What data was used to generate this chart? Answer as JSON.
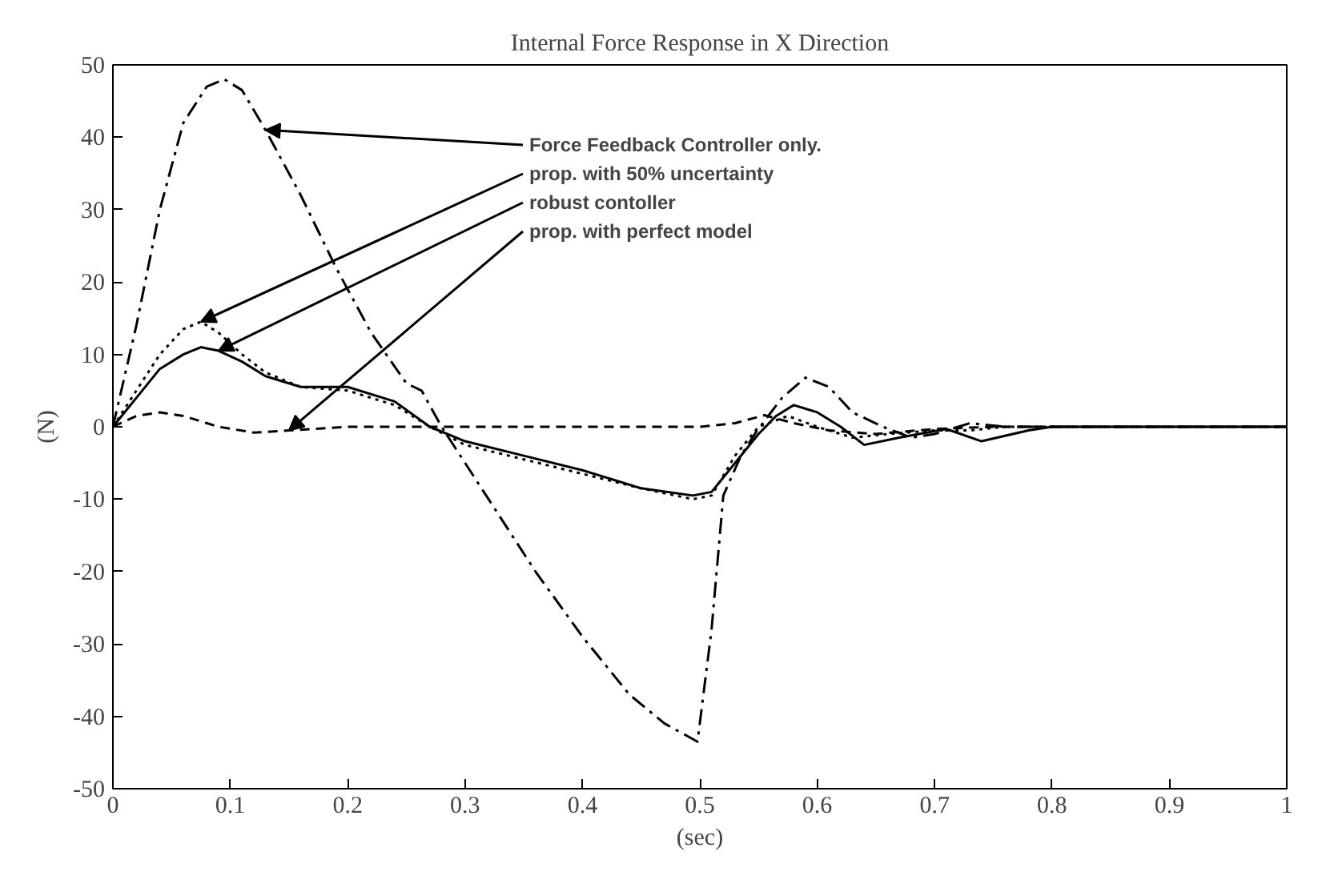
{
  "chart_data": {
    "type": "line",
    "title": "Internal Force Response in X Direction",
    "xlabel": "(sec)",
    "ylabel": "(N)",
    "xlim": [
      0,
      1
    ],
    "ylim": [
      -50,
      50
    ],
    "xticks": [
      0,
      0.1,
      0.2,
      0.3,
      0.4,
      0.5,
      0.6,
      0.7,
      0.8,
      0.9,
      1
    ],
    "yticks": [
      -50,
      -40,
      -30,
      -20,
      -10,
      0,
      10,
      20,
      30,
      40,
      50
    ],
    "grid": false,
    "series": [
      {
        "color": "#000000",
        "line_style": "dashdot",
        "x": [
          0,
          0.02,
          0.04,
          0.06,
          0.08,
          0.095,
          0.11,
          0.13,
          0.16,
          0.19,
          0.22,
          0.25,
          0.263,
          0.28,
          0.32,
          0.36,
          0.4,
          0.44,
          0.47,
          0.498,
          0.51,
          0.52,
          0.535,
          0.548,
          0.57,
          0.59,
          0.61,
          0.63,
          0.656,
          0.68,
          0.7,
          0.73,
          0.76,
          0.8,
          0.9,
          1
        ],
        "values": [
          0,
          14,
          30,
          42,
          47,
          48,
          46.5,
          41,
          32,
          22,
          13,
          6,
          5,
          0,
          -10,
          -20,
          -29,
          -37,
          -41,
          -43.5,
          -28,
          -9.5,
          -4,
          -0.7,
          4,
          6.8,
          5.5,
          2,
          0,
          -1.5,
          -1,
          0.5,
          0,
          0,
          0,
          0
        ]
      },
      {
        "color": "#000000",
        "line_style": "dotted",
        "x": [
          0,
          0.02,
          0.04,
          0.06,
          0.075,
          0.09,
          0.11,
          0.13,
          0.16,
          0.2,
          0.24,
          0.27,
          0.3,
          0.35,
          0.4,
          0.45,
          0.494,
          0.51,
          0.53,
          0.55,
          0.575,
          0.6,
          0.63,
          0.66,
          0.7,
          0.73,
          0.76,
          0.8,
          0.9,
          1
        ],
        "values": [
          0,
          5,
          10,
          13.5,
          14.5,
          13,
          10,
          7.5,
          5.5,
          5,
          3,
          0,
          -2.5,
          -4.5,
          -6.5,
          -8.5,
          -10,
          -9.5,
          -4,
          0,
          1.5,
          0,
          -1.5,
          -1,
          -0.5,
          -0.5,
          0,
          0,
          0,
          0
        ]
      },
      {
        "color": "#000000",
        "line_style": "solid",
        "x": [
          0,
          0.02,
          0.04,
          0.06,
          0.075,
          0.09,
          0.11,
          0.13,
          0.16,
          0.2,
          0.24,
          0.27,
          0.3,
          0.35,
          0.4,
          0.45,
          0.494,
          0.51,
          0.53,
          0.55,
          0.565,
          0.58,
          0.6,
          0.62,
          0.64,
          0.67,
          0.71,
          0.74,
          0.78,
          0.8,
          0.9,
          1
        ],
        "values": [
          0,
          4,
          8,
          10,
          11,
          10.5,
          9,
          7,
          5.5,
          5.5,
          3.5,
          0,
          -2,
          -4,
          -6,
          -8.5,
          -9.5,
          -9,
          -5,
          -1,
          1.5,
          3,
          2,
          0,
          -2.5,
          -1.5,
          -0.3,
          -2,
          -0.5,
          0,
          0,
          0
        ]
      },
      {
        "color": "#000000",
        "line_style": "dashed",
        "x": [
          0,
          0.02,
          0.04,
          0.06,
          0.09,
          0.12,
          0.15,
          0.2,
          0.3,
          0.4,
          0.5,
          0.53,
          0.555,
          0.58,
          0.61,
          0.65,
          0.7,
          0.75,
          0.8,
          0.9,
          1
        ],
        "values": [
          0,
          1.5,
          2,
          1.5,
          0,
          -0.8,
          -0.5,
          0,
          0,
          0,
          0,
          0.5,
          1.6,
          0.5,
          -0.5,
          -1,
          -0.3,
          0,
          0,
          0,
          0
        ]
      }
    ],
    "annotations": [
      {
        "text": "Force Feedback Controller only.",
        "x": 0.13,
        "y": 41
      },
      {
        "text": "prop. with 50% uncertainty",
        "x": 0.075,
        "y": 14.5
      },
      {
        "text": "robust contoller",
        "x": 0.09,
        "y": 10.5
      },
      {
        "text": "prop. with perfect model",
        "x": 0.15,
        "y": -0.5
      }
    ]
  }
}
